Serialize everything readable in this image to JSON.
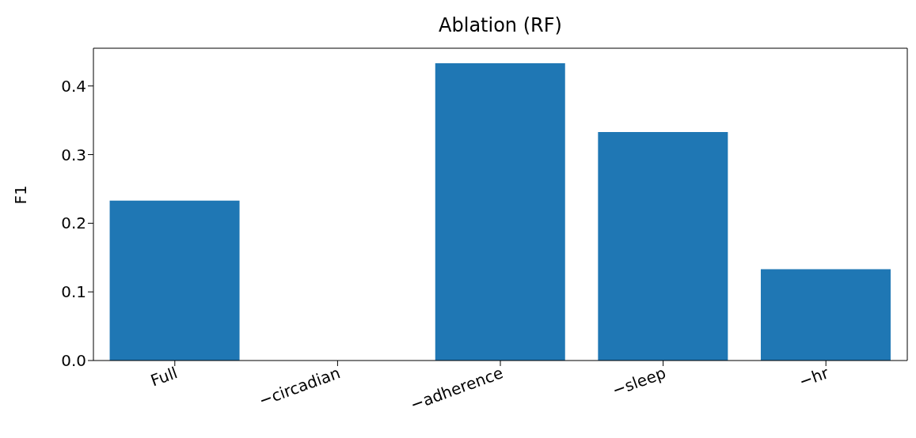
{
  "chart_data": {
    "type": "bar",
    "title": "Ablation (RF)",
    "ylabel": "F1",
    "categories": [
      "Full",
      "−circadian",
      "−adherence",
      "−sleep",
      "−hr"
    ],
    "values": [
      0.233,
      0,
      0.433,
      0.333,
      0.133
    ],
    "color": "#1f77b4",
    "ylim": [
      0,
      0.455
    ],
    "yticks": [
      {
        "value": 0,
        "label": "0.0"
      },
      0.1,
      0.2,
      0.3,
      0.4
    ],
    "grid": false,
    "legend": false
  }
}
